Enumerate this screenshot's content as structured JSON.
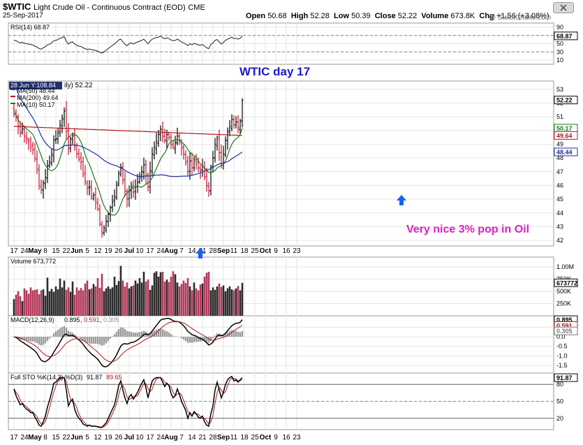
{
  "header": {
    "symbol": "$WTIC",
    "description": "Light Crude Oil - Continuous Contract (EOD)",
    "exchange": "CME",
    "date": "25-Sep-2017",
    "open_label": "Open",
    "open": "50.68",
    "high_label": "High",
    "high": "52.28",
    "low_label": "Low",
    "low": "50.39",
    "close_label": "Close",
    "close": "52.22",
    "volume_label": "Volume",
    "volume": "673.8K",
    "chg_label": "Chg",
    "chg": "+1.56 (+3.08%)",
    "watermark": "@ StockCharts.com"
  },
  "annotations": {
    "title": "WTIC day 17",
    "comment": "Very nice 3% pop in Oil",
    "hover_readout": "28 Jun Y:108.84",
    "title_color": "#1a1acc",
    "comment_color": "#e020c0",
    "arrow_color": "#1464f0"
  },
  "colors": {
    "up": "#000000",
    "down": "#c8102e",
    "vol_up": "#2b2b2b",
    "vol_down": "#b23a5a",
    "ma50": "#1f2f9a",
    "ma200": "#b01818",
    "ma10": "#1a7a1a",
    "panel_bg": "#ffffff",
    "grid": "#e6e6e6",
    "label_bg": "#1f2f6a"
  },
  "chart_data": {
    "type": "candlestick",
    "x_tick_labels": [
      "17",
      "24",
      "May",
      "8",
      "15",
      "22",
      "Jun",
      "5",
      "12",
      "19",
      "26",
      "Jul",
      "10",
      "17",
      "24",
      "Aug",
      "7",
      "14",
      "21",
      "28",
      "Sep",
      "11",
      "18",
      "25",
      "Oct",
      "9",
      "16",
      "23"
    ],
    "price": {
      "legend_partial": "ily) 52.22",
      "last": 52.22,
      "ylim": [
        41.6,
        53.6
      ],
      "y_ticks": [
        42,
        43,
        44,
        45,
        46,
        47,
        48,
        49,
        50,
        51,
        52,
        53
      ],
      "closes": [
        51.4,
        51.0,
        50.3,
        49.8,
        50.1,
        49.6,
        49.4,
        49.2,
        48.8,
        48.6,
        48.0,
        47.2,
        46.0,
        45.7,
        46.2,
        46.6,
        47.4,
        47.7,
        48.3,
        49.3,
        49.4,
        49.8,
        50.4,
        50.9,
        51.4,
        49.9,
        48.7,
        49.4,
        49.6,
        48.8,
        48.3,
        47.9,
        47.7,
        46.8,
        46.3,
        45.8,
        45.9,
        45.2,
        45.3,
        44.8,
        44.3,
        43.2,
        42.5,
        42.9,
        43.4,
        43.9,
        44.4,
        44.8,
        45.2,
        46.0,
        46.9,
        47.3,
        46.4,
        45.6,
        45.0,
        45.6,
        45.9,
        45.5,
        45.9,
        46.2,
        46.6,
        47.0,
        47.5,
        46.7,
        45.9,
        47.1,
        48.3,
        48.8,
        49.2,
        49.7,
        50.1,
        49.6,
        49.3,
        49.7,
        49.5,
        49.0,
        48.8,
        49.1,
        49.6,
        49.3,
        48.7,
        48.3,
        47.7,
        47.0,
        47.8,
        47.3,
        47.9,
        47.6,
        47.3,
        47.1,
        47.4,
        46.6,
        46.0,
        45.6,
        47.3,
        48.0,
        49.0,
        49.4,
        48.4,
        47.6,
        48.3,
        49.3,
        49.9,
        50.3,
        50.8,
        50.4,
        50.6,
        50.2,
        50.7,
        52.2
      ],
      "ma200_label": "MA(200) 49.64",
      "ma200_last": 49.64,
      "ma50_label": "MA(50) 48.44",
      "ma50_last": 48.44,
      "ma10_label": "MA(10) 50.17",
      "ma10_last": 50.17
    },
    "rsi": {
      "label": "RSI(14) 68.87",
      "last": 68.87,
      "ylim": [
        0,
        100
      ],
      "y_ticks": [
        10,
        30,
        50,
        70,
        90
      ],
      "values": [
        58,
        57,
        54,
        52,
        53,
        51,
        50,
        49,
        48,
        47,
        44,
        42,
        38,
        37,
        40,
        43,
        47,
        49,
        52,
        57,
        58,
        60,
        63,
        65,
        67,
        56,
        49,
        53,
        54,
        49,
        46,
        44,
        43,
        40,
        38,
        36,
        37,
        35,
        35,
        33,
        32,
        29,
        27,
        30,
        34,
        38,
        42,
        46,
        49,
        54,
        59,
        61,
        54,
        49,
        45,
        50,
        52,
        49,
        52,
        54,
        56,
        58,
        61,
        55,
        50,
        56,
        61,
        63,
        65,
        66,
        68,
        64,
        62,
        64,
        62,
        59,
        57,
        58,
        61,
        58,
        54,
        52,
        49,
        45,
        50,
        47,
        51,
        49,
        47,
        46,
        48,
        44,
        40,
        38,
        48,
        52,
        58,
        60,
        54,
        49,
        53,
        58,
        61,
        63,
        66,
        62,
        63,
        61,
        63,
        69
      ]
    },
    "volume": {
      "label": "Volume",
      "last": "673,772",
      "last_value": 673772,
      "ylim": [
        0,
        1200000
      ],
      "y_ticks": [
        250000,
        500000,
        750000,
        1000000
      ],
      "y_tick_labels": [
        "250K",
        "500K",
        "750K",
        "1.00M"
      ],
      "values": [
        340000,
        430000,
        500000,
        400000,
        300000,
        560000,
        520000,
        450000,
        580000,
        520000,
        530000,
        540000,
        440000,
        520000,
        540000,
        410000,
        780000,
        500000,
        550000,
        490000,
        600000,
        540000,
        760000,
        580000,
        720000,
        530000,
        580000,
        490000,
        700000,
        430000,
        580000,
        520000,
        570000,
        520000,
        660000,
        720000,
        540000,
        560000,
        650000,
        600000,
        770000,
        570000,
        860000,
        500000,
        560000,
        600000,
        550000,
        580000,
        800000,
        630000,
        710000,
        1020000,
        720000,
        600000,
        680000,
        560000,
        600000,
        620000,
        720000,
        660000,
        770000,
        680000,
        900000,
        700000,
        740000,
        530000,
        620000,
        880000,
        910000,
        800000,
        890000,
        900000,
        700000,
        740000,
        690000,
        800000,
        910000,
        850000,
        680000,
        600000,
        650000,
        720000,
        670000,
        770000,
        600000,
        520000,
        680000,
        560000,
        520000,
        640000,
        660000,
        800000,
        880000,
        900000,
        520000,
        580000,
        530000,
        600000,
        660000,
        590000,
        620000,
        500000,
        560000,
        600000,
        540000,
        520000,
        560000,
        610000,
        520000,
        673772
      ]
    },
    "macd": {
      "label": "MACD(12,26,9)",
      "macd": 0.895,
      "signal": 0.591,
      "hist": 0.305,
      "macd_str": "0.895",
      "signal_str": "0.591",
      "hist_str": "0.305",
      "ylim": [
        -1.9,
        1.1
      ],
      "y_ticks": [
        -1.5,
        -1.0,
        -0.5,
        0.0,
        0.5
      ],
      "y_tick_labels": [
        "-1.5",
        "-1.0",
        "-0.5",
        "0.0",
        "0.5"
      ]
    },
    "sto": {
      "label": "Full STO %K(14,3) %D(3)",
      "k": 91.87,
      "d": 89.65,
      "k_str": "91.87",
      "d_str": "89.65",
      "ylim": [
        0,
        100
      ],
      "y_ticks": [
        20,
        50,
        80
      ],
      "values": [
        72,
        60,
        52,
        44,
        46,
        40,
        36,
        34,
        30,
        30,
        22,
        16,
        8,
        6,
        14,
        24,
        40,
        52,
        66,
        82,
        84,
        88,
        92,
        92,
        92,
        70,
        42,
        50,
        54,
        36,
        26,
        20,
        16,
        10,
        8,
        6,
        8,
        6,
        6,
        6,
        5,
        4,
        4,
        8,
        12,
        20,
        28,
        36,
        44,
        60,
        78,
        86,
        70,
        56,
        46,
        58,
        62,
        54,
        60,
        66,
        74,
        82,
        88,
        74,
        56,
        72,
        86,
        90,
        92,
        92,
        92,
        84,
        76,
        82,
        78,
        64,
        56,
        60,
        72,
        62,
        50,
        42,
        34,
        20,
        30,
        24,
        32,
        28,
        22,
        20,
        24,
        14,
        8,
        6,
        28,
        42,
        70,
        84,
        70,
        56,
        66,
        80,
        88,
        92,
        94,
        86,
        88,
        84,
        88,
        92
      ]
    }
  }
}
